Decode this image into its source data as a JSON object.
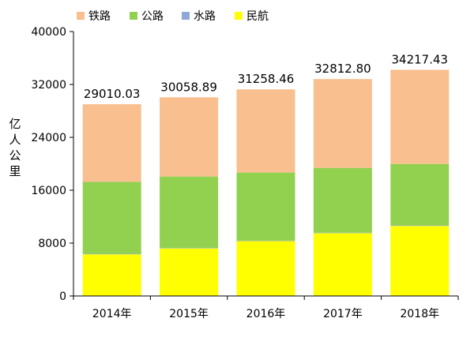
{
  "chart_data": {
    "type": "bar",
    "stacked": true,
    "ylabel": "亿人公里",
    "ylim": [
      0,
      40000
    ],
    "yticks": [
      0,
      8000,
      16000,
      24000,
      32000,
      40000
    ],
    "legend_position": "top-left",
    "categories": [
      "2014年",
      "2015年",
      "2016年",
      "2017年",
      "2018年"
    ],
    "totals": [
      "29010.03",
      "30058.89",
      "31258.46",
      "32812.80",
      "34217.43"
    ],
    "series": [
      {
        "name": "民航",
        "color": "#ffff00",
        "values": [
          6300,
          7200,
          8300,
          9500,
          10600
        ]
      },
      {
        "name": "水路",
        "color": "#8fa9d6",
        "values": [
          74,
          73,
          72,
          78,
          80
        ]
      },
      {
        "name": "公路",
        "color": "#92d050",
        "values": [
          10900,
          10800,
          10300,
          9800,
          9300
        ]
      },
      {
        "name": "铁路",
        "color": "#f9bf8f",
        "values": [
          11736.03,
          11985.89,
          12586.46,
          13434.8,
          14237.43
        ]
      }
    ],
    "legend": [
      {
        "name": "铁路",
        "color": "#f9bf8f"
      },
      {
        "name": "公路",
        "color": "#92d050"
      },
      {
        "name": "水路",
        "color": "#8fa9d6"
      },
      {
        "name": "民航",
        "color": "#ffff00"
      }
    ]
  }
}
